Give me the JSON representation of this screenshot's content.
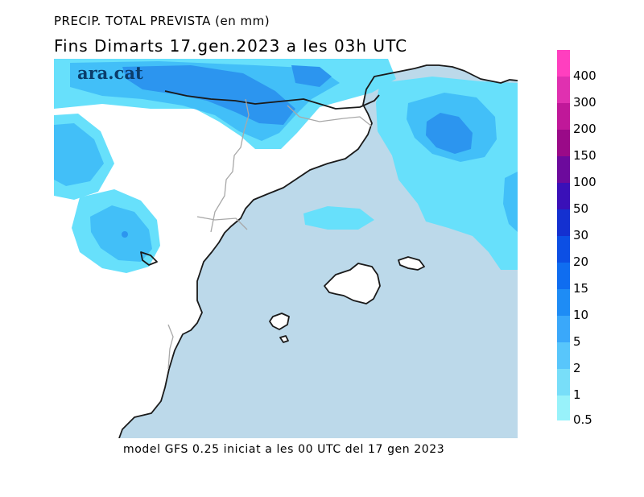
{
  "header": {
    "title": "PRECIP. TOTAL PREVISTA (en mm)",
    "subtitle": "Fins Dimarts   17.gen.2023 a les 03h UTC"
  },
  "brand": {
    "logo_text": "ara.cat"
  },
  "footer": {
    "text": "model GFS 0.25 iniciat a les 00 UTC del 17 gen 2023"
  },
  "legend": {
    "labels": [
      "400",
      "300",
      "200",
      "150",
      "100",
      "50",
      "30",
      "20",
      "15",
      "10",
      "5",
      "2",
      "1",
      "0.5"
    ],
    "colors": [
      "#ff3fbf",
      "#e030b0",
      "#c01899",
      "#9a0a88",
      "#6c0a9c",
      "#3a10b8",
      "#1430d0",
      "#0c4fe4",
      "#0f6df0",
      "#1e8cf5",
      "#3aa8fa",
      "#58c6fb",
      "#78def9",
      "#98f2fa"
    ]
  },
  "map": {
    "colors": {
      "sea": "#bcd9ea",
      "land": "#ffffff",
      "precip_1": "#67e0fb",
      "precip_2": "#42bff8",
      "precip_3": "#2c95ef",
      "coast": "#1a1a1a",
      "border": "#a8a8a8"
    }
  }
}
